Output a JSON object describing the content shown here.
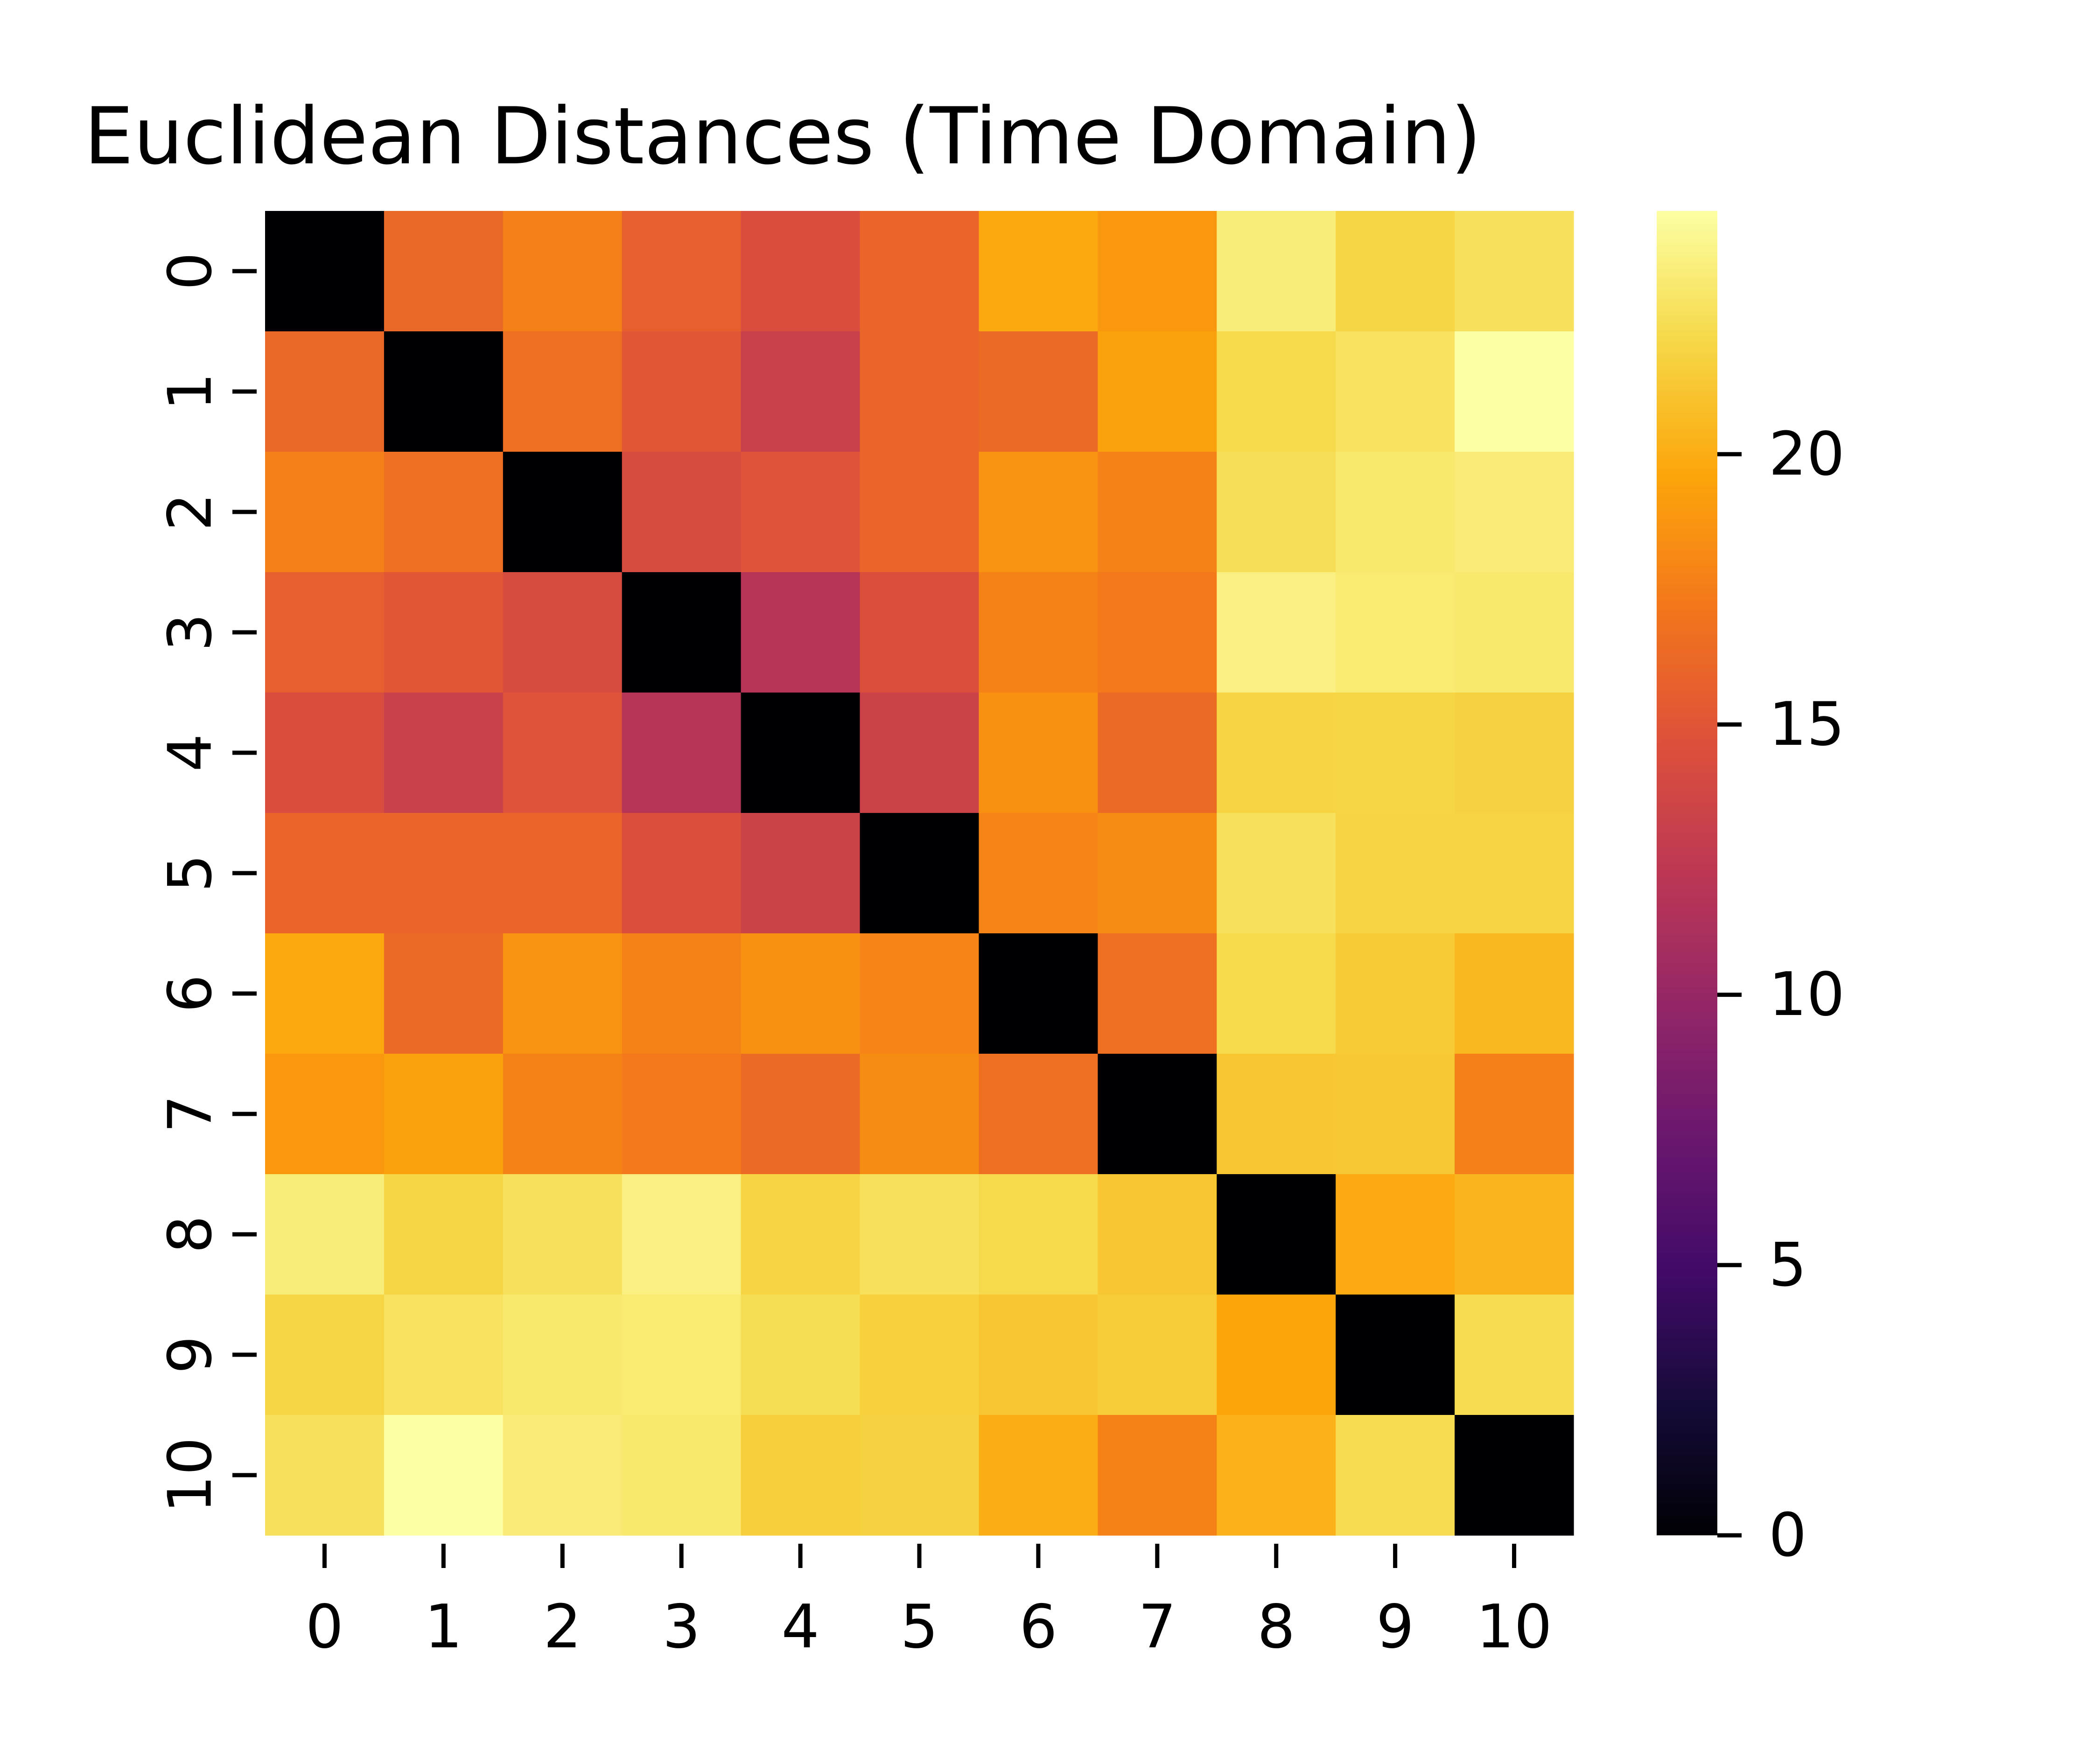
{
  "chart_data": {
    "type": "heatmap",
    "title": "Euclidean Distances (Time Domain)",
    "xlabel": "",
    "ylabel": "",
    "x_labels": [
      "0",
      "1",
      "2",
      "3",
      "4",
      "5",
      "6",
      "7",
      "8",
      "9",
      "10"
    ],
    "y_labels": [
      "0",
      "1",
      "2",
      "3",
      "4",
      "5",
      "6",
      "7",
      "8",
      "9",
      "10"
    ],
    "colormap": "inferno",
    "vmin": 0,
    "vmax": 24.5,
    "colorbar_ticks": [
      0,
      5,
      10,
      15,
      20
    ],
    "colorbar_tick_labels": [
      "0",
      "5",
      "10",
      "15",
      "20"
    ],
    "legend": "colorbar-right",
    "grid": false,
    "values": [
      [
        0,
        16.2,
        17.6,
        15.6,
        14.3,
        16.0,
        19.8,
        18.9,
        23.4,
        22.0,
        22.6
      ],
      [
        16.2,
        0,
        16.6,
        15.1,
        13.2,
        16.0,
        16.4,
        19.4,
        22.2,
        22.7,
        24.5
      ],
      [
        17.6,
        16.6,
        0,
        14.2,
        14.8,
        16.0,
        18.7,
        17.8,
        22.5,
        23.1,
        23.3
      ],
      [
        15.6,
        15.1,
        14.2,
        0,
        11.9,
        14.5,
        17.8,
        17.3,
        23.6,
        23.2,
        23.1
      ],
      [
        14.3,
        13.2,
        14.8,
        11.9,
        0,
        13.4,
        18.5,
        16.4,
        21.9,
        22.0,
        21.8
      ],
      [
        16.0,
        16.0,
        16.0,
        14.5,
        13.4,
        0,
        17.9,
        18.3,
        22.6,
        21.9,
        21.9
      ],
      [
        19.8,
        16.4,
        18.7,
        17.8,
        18.5,
        17.9,
        0,
        16.7,
        22.2,
        21.4,
        20.5
      ],
      [
        18.9,
        19.4,
        17.8,
        17.3,
        16.4,
        18.3,
        16.7,
        0,
        21.2,
        21.3,
        17.6
      ],
      [
        23.4,
        22.0,
        22.6,
        23.6,
        21.9,
        22.6,
        22.2,
        21.2,
        0,
        19.9,
        20.4
      ],
      [
        22.0,
        22.7,
        23.1,
        23.2,
        22.4,
        21.7,
        21.2,
        21.5,
        19.6,
        0,
        22.3
      ],
      [
        22.6,
        24.5,
        23.3,
        23.1,
        21.6,
        21.8,
        20.0,
        17.8,
        20.2,
        22.3,
        0
      ]
    ]
  }
}
